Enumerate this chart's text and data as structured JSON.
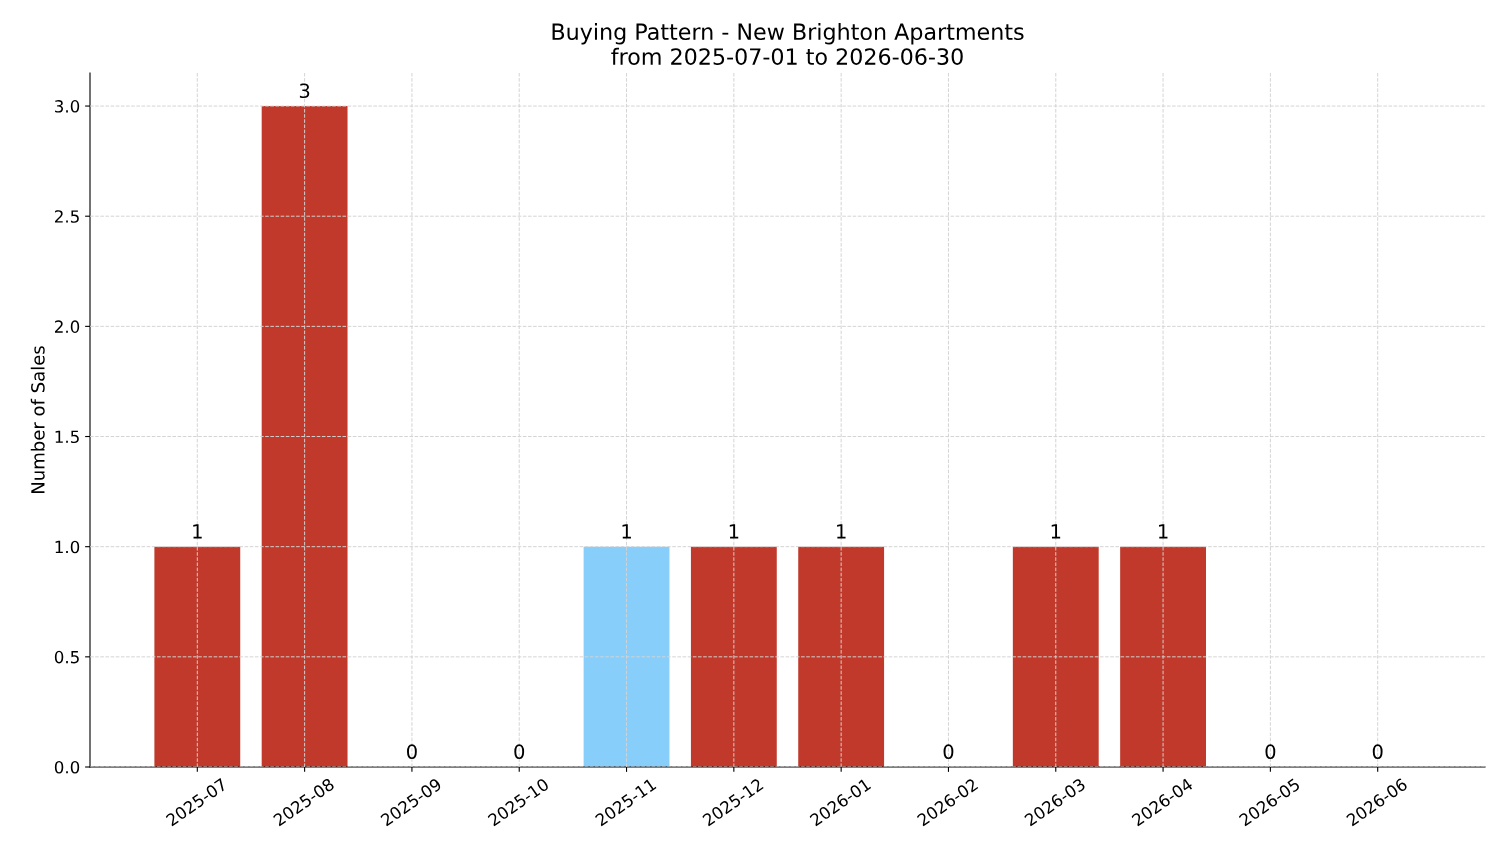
{
  "chart_data": {
    "type": "bar",
    "title": "Buying Pattern - New Brighton Apartments\nfrom 2025-07-01 to 2026-06-30",
    "ylabel": "Number of Sales",
    "categories": [
      "2025-07",
      "2025-08",
      "2025-09",
      "2025-10",
      "2025-11",
      "2025-12",
      "2026-01",
      "2026-02",
      "2026-03",
      "2026-04",
      "2026-05",
      "2026-06"
    ],
    "values": [
      1,
      3,
      0,
      0,
      1,
      1,
      1,
      0,
      1,
      1,
      0,
      0
    ],
    "colors": [
      "#c0392b",
      "#c0392b",
      "#c0392b",
      "#c0392b",
      "#87cefa",
      "#c0392b",
      "#c0392b",
      "#c0392b",
      "#c0392b",
      "#c0392b",
      "#c0392b",
      "#c0392b"
    ],
    "ylim": [
      0,
      3.15
    ],
    "yticks": [
      {
        "value": 0,
        "label": "0.0"
      },
      {
        "value": 0.5,
        "label": "0.5"
      },
      {
        "value": 1,
        "label": "1.0"
      },
      {
        "value": 1.5,
        "label": "1.5"
      },
      {
        "value": 2,
        "label": "2.0"
      },
      {
        "value": 2.5,
        "label": "2.5"
      },
      {
        "value": 3,
        "label": "3.0"
      }
    ],
    "grid": true,
    "data_labels": true
  }
}
